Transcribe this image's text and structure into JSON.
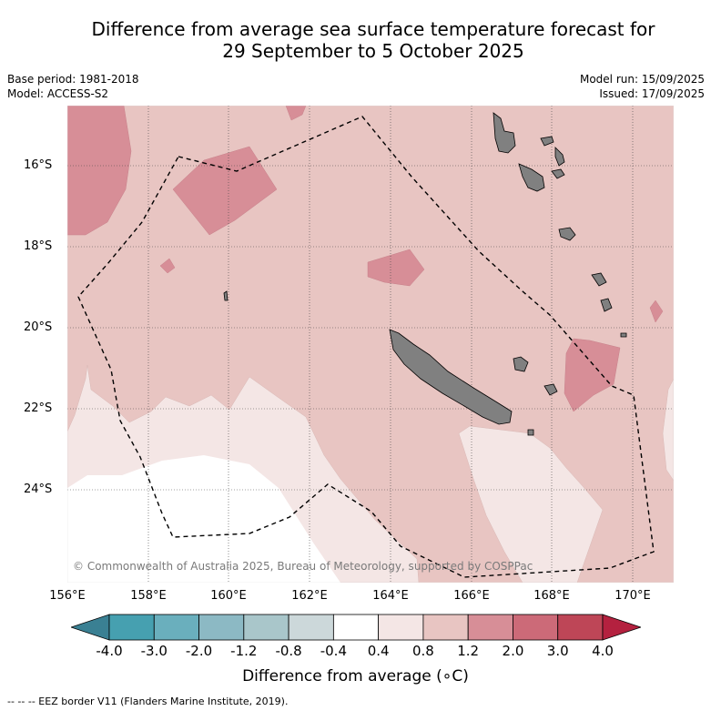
{
  "title": {
    "line1": "Difference from average sea surface temperature forecast for",
    "line2": "29 September to 5 October 2025"
  },
  "meta": {
    "base_period": "Base period: 1981-2018",
    "model": "Model: ACCESS-S2",
    "model_run": "Model run: 15/09/2025",
    "issued": "Issued: 17/09/2025"
  },
  "map": {
    "lat_labels": [
      "16°S",
      "18°S",
      "20°S",
      "22°S",
      "24°S"
    ],
    "lon_labels": [
      "156°E",
      "158°E",
      "160°E",
      "162°E",
      "164°E",
      "166°E",
      "168°E",
      "170°E"
    ],
    "copyright": "© Commonwealth of Australia 2025, Bureau of Meteorology, supported by COSPPac",
    "colors": {
      "band_0_4_to_0_8": "#f4e6e5",
      "band_0_8_to_1_2": "#e8c5c2",
      "band_1_2_to_2_0": "#d78e97",
      "land": "#808080"
    }
  },
  "colorbar": {
    "labels": [
      "-4.0",
      "-3.0",
      "-2.0",
      "-1.2",
      "-0.8",
      "-0.4",
      "0.4",
      "0.8",
      "1.2",
      "2.0",
      "3.0",
      "4.0"
    ],
    "colors": [
      "#3a8093",
      "#46a0b0",
      "#6aafbd",
      "#8cb9c4",
      "#a9c6ca",
      "#ccd8da",
      "#ffffff",
      "#f4e6e5",
      "#e8c5c2",
      "#d78e97",
      "#cc6a78",
      "#be4657",
      "#b4213f"
    ],
    "title": "Difference from average (∘C)"
  },
  "footer": {
    "eez_legend": "--  --  -- EEZ border V11 (Flanders Marine Institute, 2019)."
  }
}
